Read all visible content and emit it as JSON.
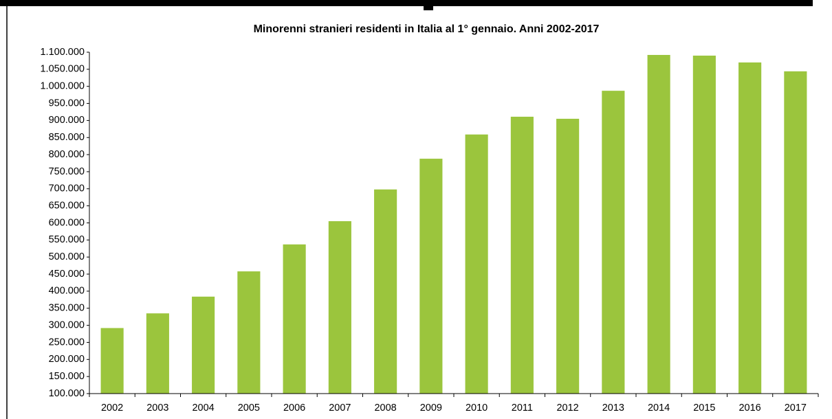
{
  "chart_data": {
    "type": "bar",
    "title": "Minorenni stranieri residenti in Italia al 1° gennaio. Anni 2002-2017",
    "categories": [
      "2002",
      "2003",
      "2004",
      "2005",
      "2006",
      "2007",
      "2008",
      "2009",
      "2010",
      "2011",
      "2012",
      "2013",
      "2014",
      "2015",
      "2016",
      "2017"
    ],
    "values": [
      292000,
      335000,
      384000,
      458000,
      537000,
      605000,
      698000,
      788000,
      859000,
      911000,
      905000,
      987000,
      1092000,
      1090000,
      1070000,
      1044000
    ],
    "color": "#9bc53d",
    "ylim": [
      100000,
      1100000
    ],
    "yticks": [
      {
        "value": 100000,
        "label": "100.000"
      },
      {
        "value": 150000,
        "label": "150.000"
      },
      {
        "value": 200000,
        "label": "200.000"
      },
      {
        "value": 250000,
        "label": "250.000"
      },
      {
        "value": 300000,
        "label": "300.000"
      },
      {
        "value": 350000,
        "label": "350.000"
      },
      {
        "value": 400000,
        "label": "400.000"
      },
      {
        "value": 450000,
        "label": "450.000"
      },
      {
        "value": 500000,
        "label": "500.000"
      },
      {
        "value": 550000,
        "label": "550.000"
      },
      {
        "value": 600000,
        "label": "600.000"
      },
      {
        "value": 650000,
        "label": "650.000"
      },
      {
        "value": 700000,
        "label": "700.000"
      },
      {
        "value": 750000,
        "label": "750.000"
      },
      {
        "value": 800000,
        "label": "800.000"
      },
      {
        "value": 850000,
        "label": "850.000"
      },
      {
        "value": 900000,
        "label": "900.000"
      },
      {
        "value": 950000,
        "label": "950.000"
      },
      {
        "value": 1000000,
        "label": "1.000.000"
      },
      {
        "value": 1050000,
        "label": "1.050.000"
      },
      {
        "value": 1100000,
        "label": "1.100.000"
      }
    ],
    "grid": false
  }
}
